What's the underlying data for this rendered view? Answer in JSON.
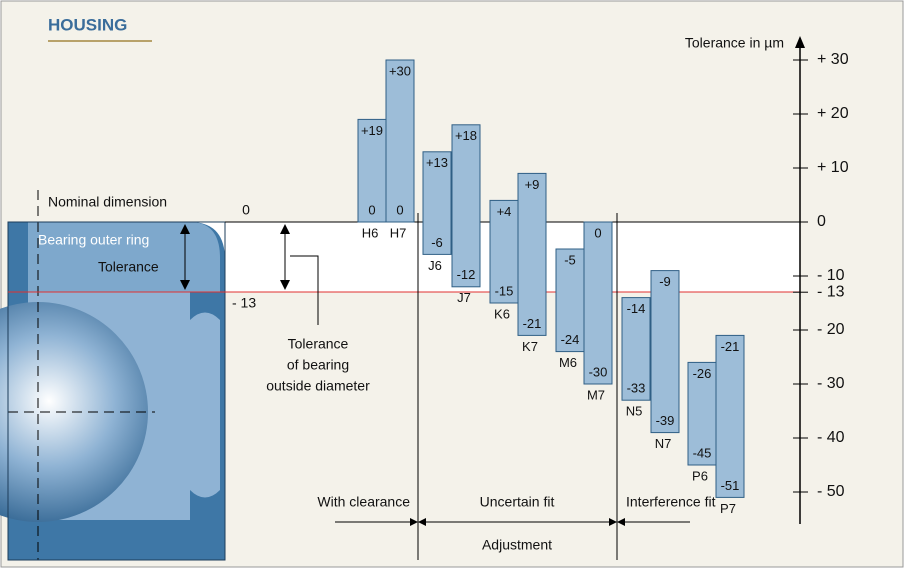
{
  "chart_data": {
    "type": "floating-bar",
    "title": "HOUSING",
    "y_label": "Tolerance in µm",
    "categories": [
      "H6",
      "H7",
      "J6",
      "J7",
      "K6",
      "K7",
      "M6",
      "M7",
      "N5",
      "N7",
      "P6",
      "P7"
    ],
    "upper": {
      "values": [
        19,
        30,
        13,
        18,
        4,
        9,
        -5,
        0,
        -14,
        -9,
        -26,
        -21
      ],
      "value_labels": [
        "+19",
        "+30",
        "+13",
        "+18",
        "+4",
        "+9",
        "-5",
        "0",
        "-14",
        "-9",
        "-26",
        "-21"
      ]
    },
    "lower": {
      "values": [
        0,
        0,
        -6,
        -12,
        -15,
        -21,
        -24,
        -30,
        -33,
        -39,
        -45,
        -51
      ]
    },
    "color": "#9dbdd8",
    "ylim": [
      -56,
      34
    ],
    "yticks": [
      {
        "value": 30,
        "label": "+ 30"
      },
      {
        "value": 20,
        "label": "+ 20"
      },
      {
        "value": 10,
        "label": "+ 10"
      },
      0,
      {
        "value": -10,
        "label": "- 10"
      },
      {
        "value": -13,
        "label": "- 13"
      },
      {
        "value": -20,
        "label": "- 20"
      },
      {
        "value": -30,
        "label": "- 30"
      },
      {
        "value": -40,
        "label": "- 40"
      },
      {
        "value": -50,
        "label": "- 50"
      }
    ],
    "annotations": {
      "nominal": "Nominal dimension",
      "nominal_value": "0",
      "ring": "Bearing outer ring",
      "ring_tolerance": "Tolerance",
      "ring_lower": "- 13",
      "od_tolerance": [
        "Tolerance",
        "of bearing",
        "outside diameter"
      ],
      "clearance": "With clearance",
      "uncertain": "Uncertain fit",
      "interference": "Interference fit",
      "adjustment": "Adjustment"
    }
  }
}
